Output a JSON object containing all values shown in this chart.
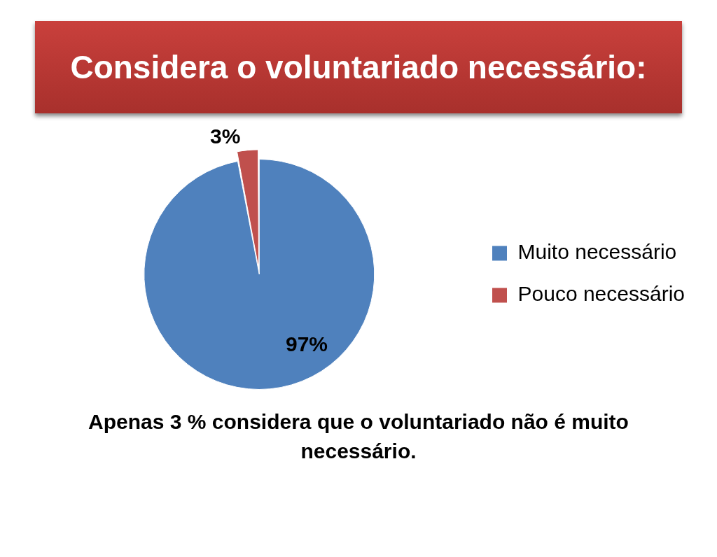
{
  "chart_data": {
    "type": "pie",
    "title": "Considera o voluntariado necessário:",
    "categories": [
      "Muito necessário",
      "Pouco necessário"
    ],
    "values": [
      97,
      3
    ],
    "colors": [
      "#4f81bd",
      "#c0504d"
    ],
    "value_labels": [
      "97%",
      "3%"
    ],
    "legend": "right",
    "annotations": [
      "Apenas 3 %  considera que o voluntariado não é muito necessário."
    ]
  }
}
